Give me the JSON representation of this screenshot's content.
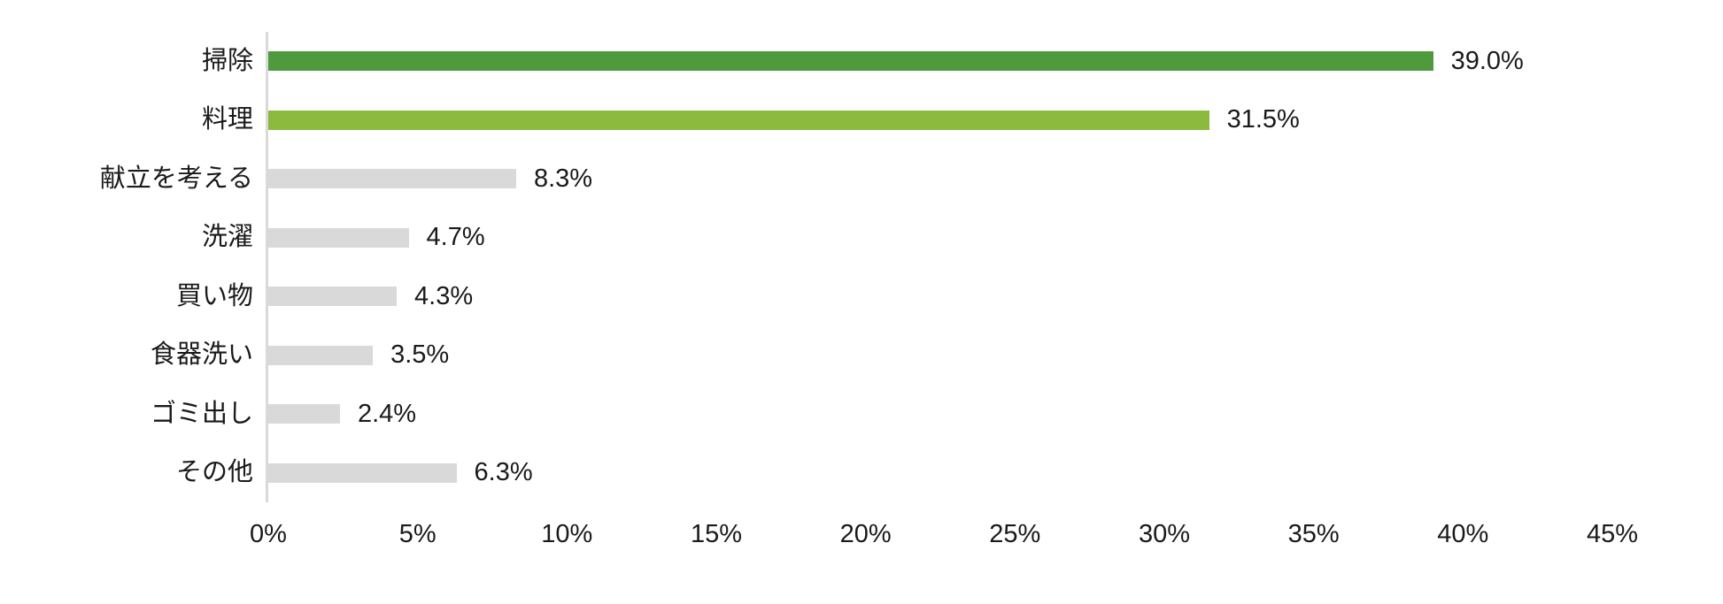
{
  "chart_data": {
    "type": "bar",
    "orientation": "horizontal",
    "title": "",
    "xlabel": "",
    "ylabel": "",
    "categories": [
      "掃除",
      "料理",
      "献立を考える",
      "洗濯",
      "買い物",
      "食器洗い",
      "ゴミ出し",
      "その他"
    ],
    "values": [
      39.0,
      31.5,
      8.3,
      4.7,
      4.3,
      3.5,
      2.4,
      6.3
    ],
    "value_labels": [
      "39.0%",
      "31.5%",
      "8.3%",
      "4.7%",
      "4.3%",
      "3.5%",
      "2.4%",
      "6.3%"
    ],
    "bar_colors": [
      "#4f9a3d",
      "#8cba3e",
      "#d9d9d9",
      "#d9d9d9",
      "#d9d9d9",
      "#d9d9d9",
      "#d9d9d9",
      "#d9d9d9"
    ],
    "x_ticks": [
      {
        "value": 0,
        "label": "0%"
      },
      {
        "value": 5,
        "label": "5%"
      },
      {
        "value": 10,
        "label": "10%"
      },
      {
        "value": 15,
        "label": "15%"
      },
      {
        "value": 20,
        "label": "20%"
      },
      {
        "value": 25,
        "label": "25%"
      },
      {
        "value": 30,
        "label": "30%"
      },
      {
        "value": 35,
        "label": "35%"
      },
      {
        "value": 40,
        "label": "40%"
      },
      {
        "value": 45,
        "label": "45%"
      }
    ],
    "xlim": [
      0,
      45
    ],
    "grid": false,
    "legend": null,
    "colors": {
      "primary_green": "#4f9a3d",
      "secondary_green": "#8cba3e",
      "neutral_gray": "#d9d9d9",
      "axis_line": "#d9d9d9",
      "text": "#1a1a1a",
      "background": "#ffffff"
    }
  }
}
